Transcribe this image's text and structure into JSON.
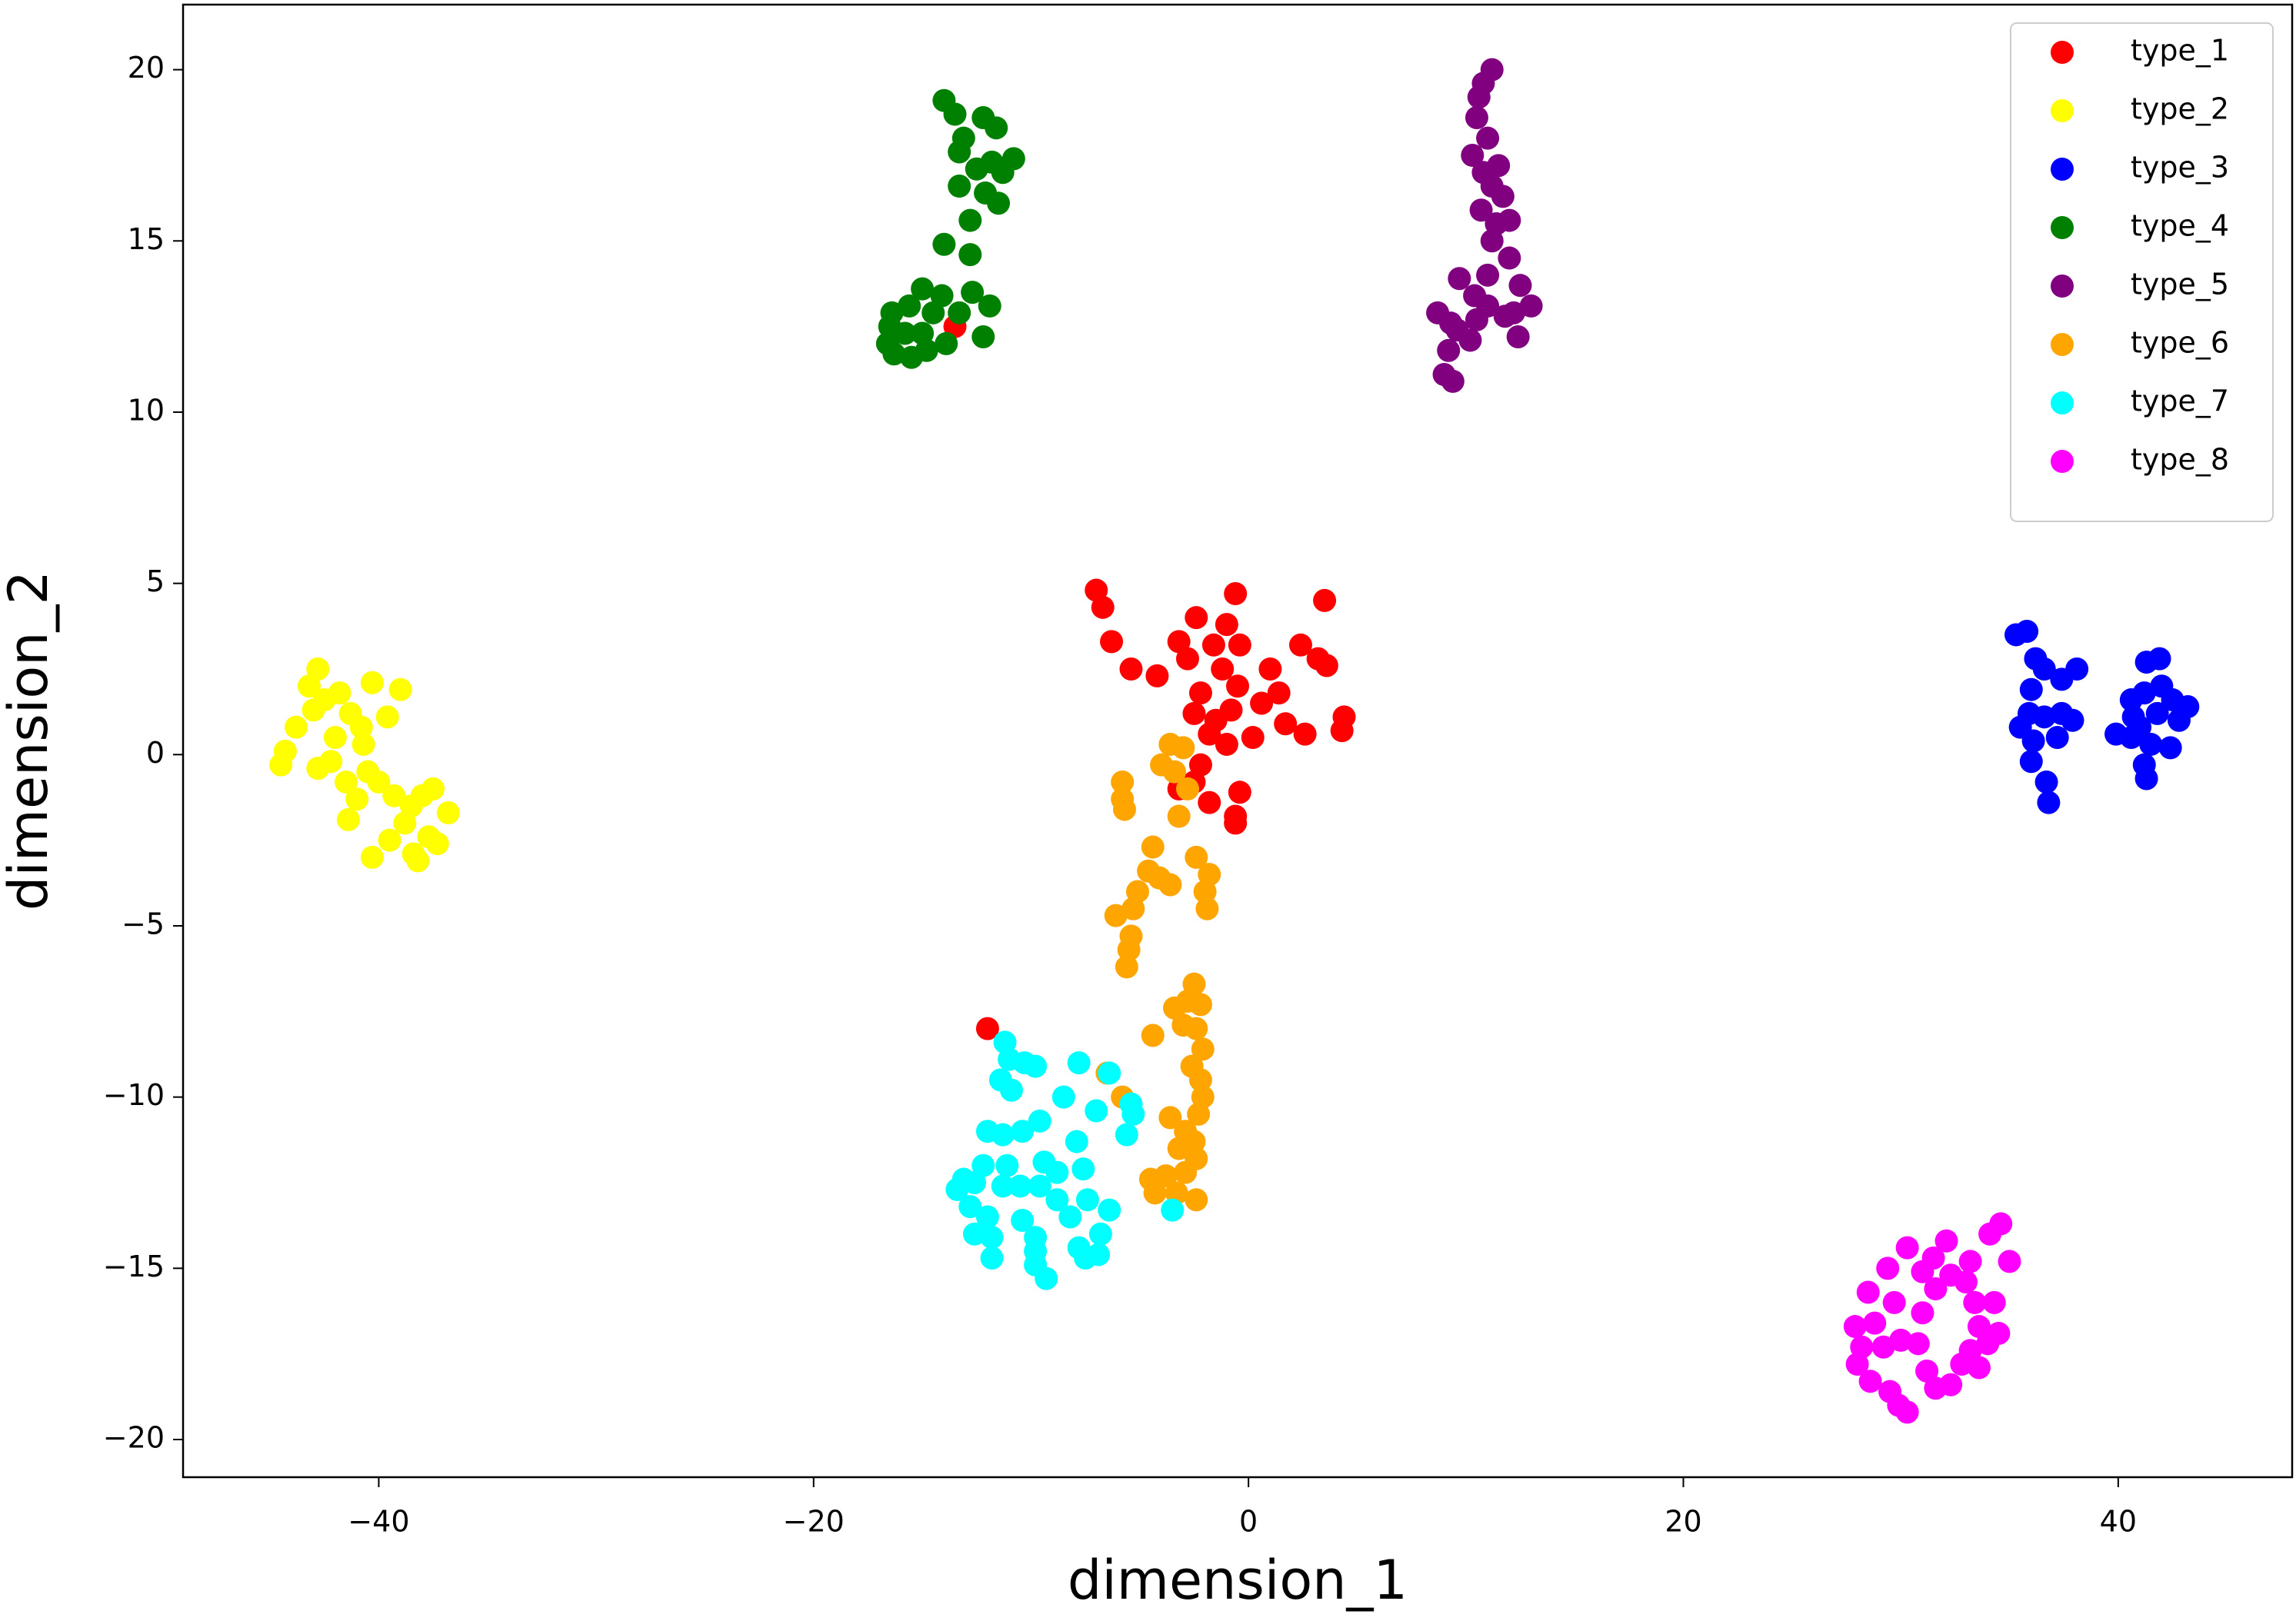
{
  "chart_data": {
    "type": "scatter",
    "x_label": "dimension_1",
    "y_label": "dimension_2",
    "xlim": [
      -49,
      48
    ],
    "ylim": [
      -21.1,
      21.9
    ],
    "xticks": [
      {
        "value": -40,
        "label": "−40"
      },
      {
        "value": -20,
        "label": "−20"
      },
      0,
      20,
      40
    ],
    "yticks": [
      {
        "value": -20,
        "label": "−20"
      },
      {
        "value": -15,
        "label": "−15"
      },
      {
        "value": -10,
        "label": "−10"
      },
      {
        "value": -5,
        "label": "−5"
      },
      0,
      5,
      10,
      15,
      20
    ],
    "legend": "upper right",
    "series": [
      {
        "name": "type_1",
        "color": "#ff0000",
        "x": [
          -7,
          -6.7,
          -6.3,
          -5.4,
          -4.2,
          -3.2,
          -2.4,
          -2.8,
          -1.6,
          -1,
          -0.6,
          -0.4,
          -1.2,
          -0.5,
          -2.2,
          -2.5,
          -1.5,
          -0.8,
          -1.8,
          -1,
          0.2,
          0.6,
          1,
          1.4,
          2.4,
          3.2,
          3.5,
          3.6,
          2.6,
          4.4,
          4.3,
          1.7,
          -2.2,
          -2.5,
          -3.2,
          -1.8,
          -0.4,
          -0.6,
          -0.6,
          -12,
          -13.5
        ],
        "values": [
          4.8,
          4.3,
          3.3,
          2.5,
          2.3,
          3.3,
          4,
          2.8,
          3.2,
          3.8,
          4.7,
          3.2,
          2.5,
          2,
          1.8,
          1.2,
          1,
          1.3,
          0.6,
          0.3,
          0.5,
          1.5,
          2.5,
          1.8,
          3.2,
          2.8,
          4.5,
          2.6,
          0.6,
          1.1,
          0.7,
          0.9,
          -0.3,
          -0.8,
          -1,
          -1.4,
          -1.1,
          -1.8,
          -2,
          -8,
          12.5
        ]
      },
      {
        "name": "type_2",
        "color": "#ffff00",
        "x": [
          -44.5,
          -44.3,
          -43.8,
          -43.2,
          -42.8,
          -43,
          -42.5,
          -41.8,
          -41.3,
          -42,
          -42.8,
          -41.5,
          -40.7,
          -40.3,
          -39.6,
          -39,
          -41,
          -40.5,
          -40,
          -39.3,
          -38.5,
          -38,
          -37.5,
          -36.8,
          -38.8,
          -39.5,
          -40.3,
          -38.4,
          -37.7,
          -37.3,
          -41.4,
          -38.2,
          -42.2,
          -40.8
        ],
        "values": [
          -0.3,
          0.1,
          0.8,
          2,
          2.5,
          1.3,
          1.6,
          1.8,
          1.2,
          0.5,
          -0.4,
          -0.8,
          0.3,
          2.1,
          1.1,
          1.9,
          -1.3,
          -0.5,
          -0.8,
          -1.2,
          -1.5,
          -1.2,
          -1,
          -1.7,
          -2,
          -2.5,
          -3,
          -2.9,
          -2.4,
          -2.6,
          -1.9,
          -3.1,
          -0.2,
          0.8
        ]
      },
      {
        "name": "type_3",
        "color": "#0000ff",
        "x": [
          35.3,
          35.8,
          36.2,
          36.6,
          37.4,
          38.1,
          36,
          35.9,
          36.6,
          37.4,
          37.9,
          35.5,
          36.1,
          37.2,
          36,
          36.7,
          36.8,
          39.9,
          40.6,
          41,
          41.3,
          41.9,
          41.2,
          42,
          40.6,
          42.5,
          43.2,
          41.5,
          42.4,
          41.2,
          41.3,
          40.7,
          42.8,
          41.8
        ],
        "values": [
          3.5,
          3.6,
          2.8,
          2.5,
          2.2,
          2.5,
          1.9,
          1.2,
          1.1,
          1.2,
          1,
          0.8,
          0.4,
          0.5,
          -0.2,
          -0.8,
          -1.4,
          0.6,
          0.5,
          0.8,
          2.7,
          2.8,
          1.8,
          2,
          1.6,
          1.6,
          1.4,
          0.3,
          0.2,
          -0.3,
          -0.7,
          1.1,
          1,
          1.2
        ]
      },
      {
        "name": "type_4",
        "color": "#008000",
        "x": [
          -14,
          -13.5,
          -13.1,
          -13.3,
          -12.2,
          -11.6,
          -12.5,
          -11.8,
          -11.3,
          -10.8,
          -12.1,
          -11.5,
          -13.3,
          -12.8,
          -14,
          -12.8,
          -12.7,
          -11.9,
          -12.2,
          -13.3,
          -14.1,
          -15,
          -15.6,
          -16.4,
          -16.5,
          -15.8,
          -15,
          -14.5,
          -14.8,
          -15.5,
          -16.6,
          -16.3,
          -13.9
        ],
        "values": [
          19.1,
          18.7,
          18,
          17.6,
          18.6,
          18.3,
          17.1,
          17.3,
          17,
          17.4,
          16.4,
          16.1,
          16.6,
          15.6,
          14.9,
          14.6,
          13.5,
          13.1,
          12.2,
          12.9,
          13.4,
          13.6,
          13.1,
          12.9,
          12.5,
          12.3,
          12.3,
          12.9,
          11.8,
          11.6,
          12,
          11.7,
          12
        ]
      },
      {
        "name": "type_5",
        "color": "#800080",
        "x": [
          11.2,
          10.8,
          10.6,
          10.5,
          11,
          10.3,
          10.8,
          11.5,
          11.2,
          11.7,
          10.7,
          11.4,
          12,
          11.2,
          12,
          11,
          10.4,
          9.7,
          12.5,
          13,
          12.2,
          11,
          11.8,
          9.3,
          8.7,
          9.6,
          9.2,
          9,
          10.2,
          9.4,
          12.4,
          10.5
        ],
        "values": [
          20,
          19.6,
          19.2,
          18.6,
          18,
          17.5,
          17,
          17.2,
          16.6,
          16.3,
          15.9,
          15.5,
          15.6,
          15,
          14.5,
          14,
          13.4,
          13.9,
          13.7,
          13.1,
          12.9,
          13.1,
          12.8,
          12.6,
          12.9,
          12.4,
          11.8,
          11.1,
          12.1,
          10.9,
          12.2,
          12.7
        ]
      },
      {
        "name": "type_6",
        "color": "#ffa500",
        "x": [
          -3.6,
          -3,
          -4,
          -3.4,
          -2.8,
          -5.8,
          -5.8,
          -5.7,
          -3.2,
          -4.4,
          -4.1,
          -3.6,
          -4.6,
          -5.1,
          -5.3,
          -6.1,
          -5.4,
          -5.5,
          -5.6,
          -2.4,
          -1.8,
          -2,
          -1.9,
          -2.5,
          -2.8,
          -2.2,
          -3.4,
          -3,
          -2.4,
          -2.1,
          -4.4,
          -2.6,
          -2.2,
          -2.1,
          -2.3,
          -3.6,
          -2.9,
          -2.5,
          -3.2,
          -2.4,
          -2.9,
          -3.8,
          -4.3,
          -3.3,
          -2.4,
          -6.5,
          -5.8,
          -4.5
        ],
        "values": [
          0.3,
          0.2,
          -0.3,
          -0.5,
          -1,
          -0.8,
          -1.3,
          -1.6,
          -1.8,
          -2.7,
          -3.6,
          -3.8,
          -3.4,
          -4,
          -4.5,
          -4.7,
          -5.3,
          -5.7,
          -6.2,
          -3,
          -3.5,
          -4,
          -4.5,
          -6.7,
          -7.2,
          -7.3,
          -7.4,
          -7.9,
          -8,
          -8.6,
          -8.2,
          -9.1,
          -9.5,
          -10,
          -10.5,
          -10.6,
          -11,
          -11.3,
          -11.5,
          -11.8,
          -12.2,
          -12.3,
          -12.8,
          -12.8,
          -13,
          -9.3,
          -10,
          -12.4
        ]
      },
      {
        "name": "type_7",
        "color": "#00ffff",
        "x": [
          -11.2,
          -11,
          -10.3,
          -9.8,
          -11.4,
          -10.9,
          -7.8,
          -6.4,
          -8.5,
          -7,
          -5.4,
          -5.3,
          -12,
          -11.3,
          -10.4,
          -9.6,
          -7.9,
          -5.6,
          -12.2,
          -11.1,
          -9.4,
          -8.8,
          -7.6,
          -13.1,
          -13.4,
          -12.6,
          -11.3,
          -10.5,
          -9.6,
          -8.8,
          -12.8,
          -12,
          -10.4,
          -7.4,
          -6.4,
          -8.2,
          -3.5,
          -12.6,
          -11.8,
          -9.8,
          -9.8,
          -7.8,
          -6.8,
          -7.5,
          -6.9,
          -9.8,
          -11.8,
          -9.3
        ],
        "values": [
          -8.4,
          -8.9,
          -9,
          -9.1,
          -9.5,
          -9.8,
          -9,
          -9.3,
          -10,
          -10.4,
          -10.2,
          -10.5,
          -11,
          -11.1,
          -11,
          -10.7,
          -11.3,
          -11.1,
          -12,
          -12,
          -11.9,
          -12.2,
          -12.1,
          -12.4,
          -12.7,
          -12.5,
          -12.6,
          -12.6,
          -12.6,
          -13,
          -13.2,
          -13.5,
          -13.6,
          -13,
          -13.3,
          -13.5,
          -13.3,
          -14,
          -14.1,
          -14.1,
          -14.5,
          -14.4,
          -14,
          -14.7,
          -14.6,
          -14.9,
          -14.7,
          -15.3
        ]
      },
      {
        "name": "type_8",
        "color": "#ff00ff",
        "x": [
          34.6,
          34.1,
          32.1,
          30.3,
          31.5,
          33.2,
          35,
          29.4,
          31,
          32.3,
          33,
          28.5,
          31.6,
          29.7,
          33.4,
          34.3,
          27.9,
          28.8,
          31,
          30,
          33.6,
          34.5,
          28.2,
          29.2,
          30.8,
          33.2,
          34,
          28,
          28.6,
          31.2,
          32.8,
          33.6,
          31.6,
          29.5,
          32.3,
          29.9,
          30.3
        ],
        "values": [
          -13.7,
          -14,
          -14.2,
          -14.4,
          -14.7,
          -14.8,
          -14.8,
          -15,
          -15.1,
          -15.2,
          -15.4,
          -15.7,
          -15.6,
          -16,
          -16,
          -16,
          -16.7,
          -16.6,
          -16.3,
          -17.1,
          -16.7,
          -16.9,
          -17.3,
          -17.3,
          -17.2,
          -17.4,
          -17.2,
          -17.8,
          -18.3,
          -18,
          -17.8,
          -17.9,
          -18.5,
          -18.6,
          -18.4,
          -19,
          -19.2
        ]
      }
    ]
  }
}
